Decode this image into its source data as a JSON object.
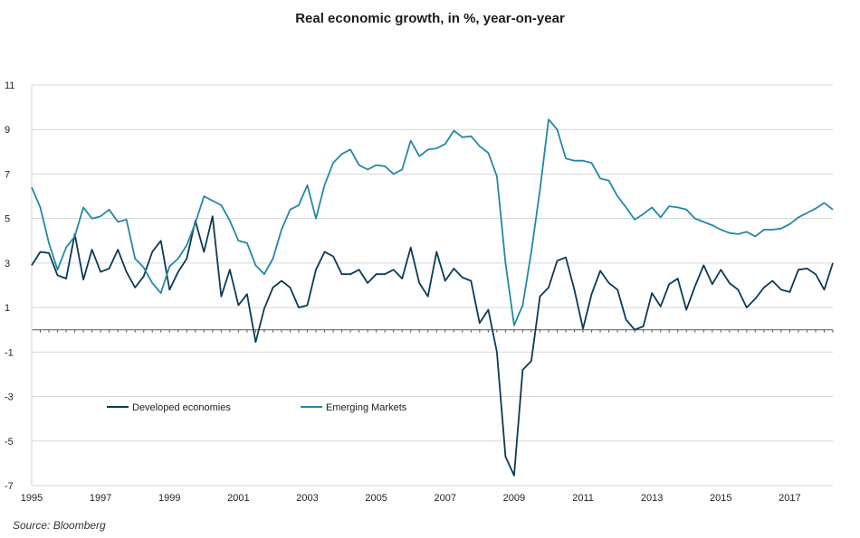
{
  "title": "Real economic growth, in %, year-on-year",
  "source": "Source:  Bloomberg",
  "colors": {
    "developed": "#0b3a57",
    "emerging": "#2387a7",
    "grid": "#d6d6d6",
    "zero_axis": "#555555"
  },
  "chart_data": {
    "type": "line",
    "title": "Real economic growth, in %, year-on-year",
    "xlabel": "",
    "ylabel": "",
    "xlim": [
      1995,
      2018.25
    ],
    "ylim": [
      -7,
      11
    ],
    "yticks": [
      11,
      9,
      7,
      5,
      3,
      1,
      -1,
      -3,
      -5,
      -7
    ],
    "xticks": [
      "1995",
      "1997",
      "1999",
      "2001",
      "2003",
      "2005",
      "2007",
      "2009",
      "2011",
      "2013",
      "2015",
      "2017"
    ],
    "grid": "horizontal",
    "legend_position": "lower-left",
    "x": [
      1995.0,
      1995.25,
      1995.5,
      1995.75,
      1996.0,
      1996.25,
      1996.5,
      1996.75,
      1997.0,
      1997.25,
      1997.5,
      1997.75,
      1998.0,
      1998.25,
      1998.5,
      1998.75,
      1999.0,
      1999.25,
      1999.5,
      1999.75,
      2000.0,
      2000.25,
      2000.5,
      2000.75,
      2001.0,
      2001.25,
      2001.5,
      2001.75,
      2002.0,
      2002.25,
      2002.5,
      2002.75,
      2003.0,
      2003.25,
      2003.5,
      2003.75,
      2004.0,
      2004.25,
      2004.5,
      2004.75,
      2005.0,
      2005.25,
      2005.5,
      2005.75,
      2006.0,
      2006.25,
      2006.5,
      2006.75,
      2007.0,
      2007.25,
      2007.5,
      2007.75,
      2008.0,
      2008.25,
      2008.5,
      2008.75,
      2009.0,
      2009.25,
      2009.5,
      2009.75,
      2010.0,
      2010.25,
      2010.5,
      2010.75,
      2011.0,
      2011.25,
      2011.5,
      2011.75,
      2012.0,
      2012.25,
      2012.5,
      2012.75,
      2013.0,
      2013.25,
      2013.5,
      2013.75,
      2014.0,
      2014.25,
      2014.5,
      2014.75,
      2015.0,
      2015.25,
      2015.5,
      2015.75,
      2016.0,
      2016.25,
      2016.5,
      2016.75,
      2017.0,
      2017.25,
      2017.5,
      2017.75,
      2018.0,
      2018.25
    ],
    "series": [
      {
        "name": "Developed economies",
        "values": [
          2.9,
          3.5,
          3.45,
          2.45,
          2.3,
          4.3,
          2.25,
          3.6,
          2.6,
          2.75,
          3.6,
          2.6,
          1.9,
          2.4,
          3.5,
          4.0,
          1.8,
          2.6,
          3.2,
          4.9,
          3.5,
          5.1,
          1.5,
          2.7,
          1.1,
          1.6,
          -0.55,
          0.95,
          1.9,
          2.2,
          1.9,
          1.0,
          1.1,
          2.7,
          3.5,
          3.3,
          2.5,
          2.5,
          2.7,
          2.1,
          2.5,
          2.5,
          2.7,
          2.3,
          3.7,
          2.1,
          1.5,
          3.5,
          2.2,
          2.75,
          2.35,
          2.2,
          0.3,
          0.9,
          -1.0,
          -5.7,
          -6.55,
          -1.8,
          -1.4,
          1.5,
          1.9,
          3.1,
          3.25,
          1.8,
          0.05,
          1.6,
          2.65,
          2.1,
          1.8,
          0.45,
          0.0,
          0.15,
          1.65,
          1.05,
          2.05,
          2.3,
          0.9,
          1.95,
          2.9,
          2.05,
          2.7,
          2.1,
          1.8,
          1.0,
          1.4,
          1.9,
          2.2,
          1.8,
          1.7,
          2.7,
          2.75,
          2.5,
          1.8,
          3.0
        ]
      },
      {
        "name": "Emerging Markets",
        "values": [
          6.4,
          5.5,
          3.9,
          2.7,
          3.7,
          4.2,
          5.5,
          5.0,
          5.1,
          5.4,
          4.85,
          4.95,
          3.2,
          2.8,
          2.1,
          1.65,
          2.85,
          3.2,
          3.8,
          4.8,
          6.0,
          5.8,
          5.6,
          4.9,
          4.0,
          3.9,
          2.9,
          2.5,
          3.2,
          4.5,
          5.4,
          5.6,
          6.5,
          5.0,
          6.5,
          7.5,
          7.9,
          8.1,
          7.4,
          7.2,
          7.4,
          7.35,
          7.0,
          7.2,
          8.5,
          7.8,
          8.1,
          8.15,
          8.35,
          8.95,
          8.65,
          8.7,
          8.25,
          7.95,
          6.9,
          3.0,
          0.2,
          1.1,
          3.5,
          6.3,
          9.45,
          9.0,
          7.7,
          7.6,
          7.6,
          7.5,
          6.8,
          6.7,
          6.0,
          5.5,
          4.95,
          5.2,
          5.5,
          5.05,
          5.55,
          5.5,
          5.4,
          5.0,
          4.85,
          4.7,
          4.5,
          4.35,
          4.3,
          4.4,
          4.2,
          4.5,
          4.5,
          4.55,
          4.75,
          5.05,
          5.25,
          5.45,
          5.7,
          5.4
        ]
      }
    ]
  }
}
